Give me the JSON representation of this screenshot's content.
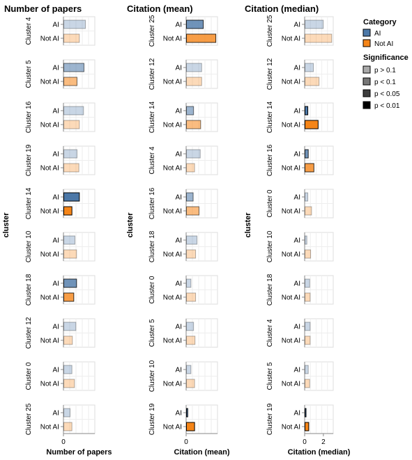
{
  "chart_data": [
    {
      "type": "bar",
      "orientation": "horizontal",
      "title": "Number of papers",
      "xlabel": "Number of papers",
      "ylabel": "cluster",
      "x_ticks": [
        "0"
      ],
      "xlim": [
        0,
        1.35
      ],
      "row_labels": [
        "AI",
        "Not AI"
      ],
      "groups": [
        {
          "cluster": "Cluster 4",
          "ai": {
            "value": 0.93,
            "sig": "p > 0.1"
          },
          "not_ai": {
            "value": 0.67,
            "sig": "p > 0.1"
          }
        },
        {
          "cluster": "Cluster 5",
          "ai": {
            "value": 0.87,
            "sig": "p < 0.1"
          },
          "not_ai": {
            "value": 0.57,
            "sig": "p < 0.1"
          }
        },
        {
          "cluster": "Cluster 16",
          "ai": {
            "value": 0.85,
            "sig": "p > 0.1"
          },
          "not_ai": {
            "value": 0.67,
            "sig": "p > 0.1"
          }
        },
        {
          "cluster": "Cluster 19",
          "ai": {
            "value": 0.57,
            "sig": "p > 0.1"
          },
          "not_ai": {
            "value": 0.65,
            "sig": "p > 0.1"
          }
        },
        {
          "cluster": "Cluster 14",
          "ai": {
            "value": 0.67,
            "sig": "p < 0.01"
          },
          "not_ai": {
            "value": 0.35,
            "sig": "p < 0.01"
          }
        },
        {
          "cluster": "Cluster 10",
          "ai": {
            "value": 0.48,
            "sig": "p > 0.1"
          },
          "not_ai": {
            "value": 0.55,
            "sig": "p > 0.1"
          }
        },
        {
          "cluster": "Cluster 18",
          "ai": {
            "value": 0.55,
            "sig": "p < 0.05"
          },
          "not_ai": {
            "value": 0.43,
            "sig": "p < 0.05"
          }
        },
        {
          "cluster": "Cluster 12",
          "ai": {
            "value": 0.52,
            "sig": "p > 0.1"
          },
          "not_ai": {
            "value": 0.37,
            "sig": "p > 0.1"
          }
        },
        {
          "cluster": "Cluster 0",
          "ai": {
            "value": 0.35,
            "sig": "p > 0.1"
          },
          "not_ai": {
            "value": 0.46,
            "sig": "p > 0.1"
          }
        },
        {
          "cluster": "Cluster 25",
          "ai": {
            "value": 0.27,
            "sig": "p > 0.1"
          },
          "not_ai": {
            "value": 0.35,
            "sig": "p > 0.1"
          }
        }
      ]
    },
    {
      "type": "bar",
      "orientation": "horizontal",
      "title": "Citation (mean)",
      "xlabel": "Citation (mean)",
      "ylabel": "cluster",
      "x_ticks": [
        "0"
      ],
      "xlim": [
        0,
        1.55
      ],
      "row_labels": [
        "AI",
        "Not AI"
      ],
      "groups": [
        {
          "cluster": "Cluster 25",
          "ai": {
            "value": 0.83,
            "sig": "p < 0.05"
          },
          "not_ai": {
            "value": 1.45,
            "sig": "p < 0.05"
          }
        },
        {
          "cluster": "Cluster 12",
          "ai": {
            "value": 0.75,
            "sig": "p > 0.1"
          },
          "not_ai": {
            "value": 0.75,
            "sig": "p > 0.1"
          }
        },
        {
          "cluster": "Cluster 14",
          "ai": {
            "value": 0.35,
            "sig": "p < 0.1"
          },
          "not_ai": {
            "value": 0.7,
            "sig": "p < 0.1"
          }
        },
        {
          "cluster": "Cluster 4",
          "ai": {
            "value": 0.68,
            "sig": "p > 0.1"
          },
          "not_ai": {
            "value": 0.4,
            "sig": "p > 0.1"
          }
        },
        {
          "cluster": "Cluster 16",
          "ai": {
            "value": 0.33,
            "sig": "p < 0.1"
          },
          "not_ai": {
            "value": 0.62,
            "sig": "p < 0.1"
          }
        },
        {
          "cluster": "Cluster 18",
          "ai": {
            "value": 0.52,
            "sig": "p > 0.1"
          },
          "not_ai": {
            "value": 0.45,
            "sig": "p > 0.1"
          }
        },
        {
          "cluster": "Cluster 0",
          "ai": {
            "value": 0.22,
            "sig": "p > 0.1"
          },
          "not_ai": {
            "value": 0.45,
            "sig": "p > 0.1"
          }
        },
        {
          "cluster": "Cluster 5",
          "ai": {
            "value": 0.35,
            "sig": "p > 0.1"
          },
          "not_ai": {
            "value": 0.42,
            "sig": "p > 0.1"
          }
        },
        {
          "cluster": "Cluster 10",
          "ai": {
            "value": 0.22,
            "sig": "p > 0.1"
          },
          "not_ai": {
            "value": 0.4,
            "sig": "p > 0.1"
          }
        },
        {
          "cluster": "Cluster 19",
          "ai": {
            "value": 0.06,
            "sig": "p < 0.01"
          },
          "not_ai": {
            "value": 0.4,
            "sig": "p < 0.01"
          }
        }
      ]
    },
    {
      "type": "bar",
      "orientation": "horizontal",
      "title": "Citation (median)",
      "xlabel": "Citation (median)",
      "ylabel": "cluster",
      "x_ticks": [
        "0",
        "2"
      ],
      "xlim": [
        0,
        3.05
      ],
      "row_labels": [
        "AI",
        "Not AI"
      ],
      "groups": [
        {
          "cluster": "Cluster 25",
          "ai": {
            "value": 1.95,
            "sig": "p > 0.1"
          },
          "not_ai": {
            "value": 2.85,
            "sig": "p > 0.1"
          }
        },
        {
          "cluster": "Cluster 12",
          "ai": {
            "value": 0.9,
            "sig": "p > 0.1"
          },
          "not_ai": {
            "value": 1.5,
            "sig": "p > 0.1"
          }
        },
        {
          "cluster": "Cluster 14",
          "ai": {
            "value": 0.3,
            "sig": "p < 0.01"
          },
          "not_ai": {
            "value": 1.4,
            "sig": "p < 0.01"
          }
        },
        {
          "cluster": "Cluster 16",
          "ai": {
            "value": 0.35,
            "sig": "p < 0.05"
          },
          "not_ai": {
            "value": 0.95,
            "sig": "p < 0.05"
          }
        },
        {
          "cluster": "Cluster 0",
          "ai": {
            "value": 0.3,
            "sig": "p > 0.1"
          },
          "not_ai": {
            "value": 0.7,
            "sig": "p > 0.1"
          }
        },
        {
          "cluster": "Cluster 10",
          "ai": {
            "value": 0.2,
            "sig": "p > 0.1"
          },
          "not_ai": {
            "value": 0.6,
            "sig": "p > 0.1"
          }
        },
        {
          "cluster": "Cluster 18",
          "ai": {
            "value": 0.5,
            "sig": "p > 0.1"
          },
          "not_ai": {
            "value": 0.55,
            "sig": "p > 0.1"
          }
        },
        {
          "cluster": "Cluster 4",
          "ai": {
            "value": 0.55,
            "sig": "p > 0.1"
          },
          "not_ai": {
            "value": 0.55,
            "sig": "p > 0.1"
          }
        },
        {
          "cluster": "Cluster 5",
          "ai": {
            "value": 0.35,
            "sig": "p > 0.1"
          },
          "not_ai": {
            "value": 0.5,
            "sig": "p > 0.1"
          }
        },
        {
          "cluster": "Cluster 19",
          "ai": {
            "value": 0.05,
            "sig": "p < 0.01"
          },
          "not_ai": {
            "value": 0.4,
            "sig": "p < 0.01"
          }
        }
      ]
    }
  ],
  "legend": {
    "category_title": "Category",
    "categories": [
      {
        "label": "AI",
        "color": "#4c78a8"
      },
      {
        "label": "Not AI",
        "color": "#f58518"
      }
    ],
    "significance_title": "Significance",
    "levels": [
      {
        "label": "p > 0.1",
        "opacity": 0.3,
        "swatch": "#aaaaaa"
      },
      {
        "label": "p < 0.1",
        "opacity": 0.55,
        "swatch": "#777777"
      },
      {
        "label": "p < 0.05",
        "opacity": 0.8,
        "swatch": "#3d3d3d"
      },
      {
        "label": "p < 0.01",
        "opacity": 1.0,
        "swatch": "#000000"
      }
    ]
  }
}
